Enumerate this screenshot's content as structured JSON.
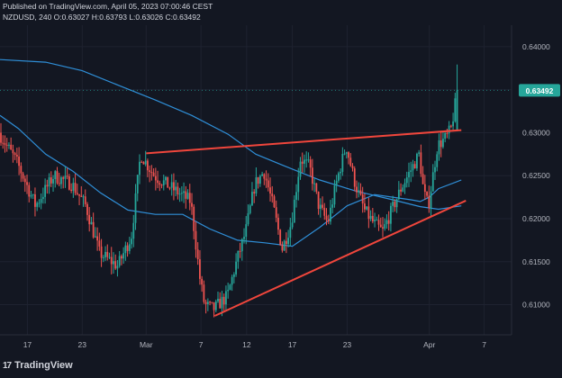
{
  "header": {
    "published": "Published on TradingView.com, April 05, 2023 07:00:46 CEST",
    "symbol_line": "NZDUSD, 240  O:0.63027 H:0.63793 L:0.63026 C:0.63492"
  },
  "brand": {
    "logo_glyph": "17",
    "name": "TradingView"
  },
  "colors": {
    "background": "#131722",
    "up": "#26a69a",
    "down": "#ef5350",
    "ma_line": "#2f8fd8",
    "trendline": "#f0463c",
    "price_tag": "#26a69a",
    "axis_text": "#b2b5be"
  },
  "chart_data": {
    "type": "candlestick",
    "symbol": "NZDUSD",
    "timeframe": "240",
    "ohlc_last": {
      "open": 0.63027,
      "high": 0.63793,
      "low": 0.63026,
      "close": 0.63492
    },
    "last_price_label": "0.63492",
    "y_ticks": [
      0.61,
      0.615,
      0.62,
      0.625,
      0.63,
      0.635,
      0.64
    ],
    "y_tick_labels": [
      "0.61000",
      "0.61500",
      "0.62000",
      "0.62500",
      "0.63000",
      "0.63500",
      "0.64000"
    ],
    "ylim": [
      0.6065,
      0.6425
    ],
    "x_ticks": [
      {
        "label": "17",
        "day": -12
      },
      {
        "label": "23",
        "day": -6
      },
      {
        "label": "Mar",
        "day": 1
      },
      {
        "label": "7",
        "day": 7
      },
      {
        "label": "12",
        "day": 12
      },
      {
        "label": "17",
        "day": 17
      },
      {
        "label": "23",
        "day": 23
      },
      {
        "label": "Apr",
        "day": 32
      },
      {
        "label": "7",
        "day": 38
      }
    ],
    "xlim": [
      -15,
      41
    ],
    "price_path": [
      [
        -15,
        0.63
      ],
      [
        -13,
        0.6265
      ],
      [
        -11,
        0.6215
      ],
      [
        -9,
        0.625
      ],
      [
        -7,
        0.624
      ],
      [
        -5.5,
        0.6215
      ],
      [
        -4,
        0.616
      ],
      [
        -2,
        0.6145
      ],
      [
        -0.5,
        0.618
      ],
      [
        0.5,
        0.6275
      ],
      [
        2,
        0.625
      ],
      [
        4,
        0.6235
      ],
      [
        6,
        0.622
      ],
      [
        7,
        0.613
      ],
      [
        7.5,
        0.61
      ],
      [
        8.5,
        0.6095
      ],
      [
        10,
        0.611
      ],
      [
        11,
        0.615
      ],
      [
        12,
        0.6185
      ],
      [
        13,
        0.624
      ],
      [
        14,
        0.6255
      ],
      [
        15,
        0.6215
      ],
      [
        16,
        0.6165
      ],
      [
        17,
        0.6195
      ],
      [
        18,
        0.627
      ],
      [
        19,
        0.626
      ],
      [
        20,
        0.6215
      ],
      [
        21,
        0.6195
      ],
      [
        22,
        0.6245
      ],
      [
        23,
        0.6285
      ],
      [
        24,
        0.624
      ],
      [
        25,
        0.621
      ],
      [
        26,
        0.6195
      ],
      [
        27,
        0.6185
      ],
      [
        28,
        0.621
      ],
      [
        29,
        0.6235
      ],
      [
        30,
        0.6255
      ],
      [
        31,
        0.6275
      ],
      [
        31.5,
        0.623
      ],
      [
        32,
        0.6215
      ],
      [
        33,
        0.6285
      ],
      [
        34,
        0.6295
      ],
      [
        34.5,
        0.6305
      ],
      [
        35.2,
        0.6349
      ]
    ],
    "ma_slow": [
      [
        -15,
        0.6385
      ],
      [
        -10,
        0.6382
      ],
      [
        -6,
        0.6372
      ],
      [
        -2,
        0.6355
      ],
      [
        2,
        0.6338
      ],
      [
        6,
        0.632
      ],
      [
        10,
        0.6298
      ],
      [
        13,
        0.6275
      ],
      [
        16,
        0.6262
      ],
      [
        20,
        0.6245
      ],
      [
        24,
        0.6232
      ],
      [
        28,
        0.6222
      ],
      [
        31,
        0.6214
      ],
      [
        33,
        0.6211
      ],
      [
        35.5,
        0.6215
      ]
    ],
    "ma_fast": [
      [
        -15,
        0.632
      ],
      [
        -13,
        0.6305
      ],
      [
        -10,
        0.6275
      ],
      [
        -7,
        0.6255
      ],
      [
        -4,
        0.623
      ],
      [
        -1,
        0.621
      ],
      [
        2,
        0.6205
      ],
      [
        5,
        0.6205
      ],
      [
        8,
        0.6188
      ],
      [
        11,
        0.6175
      ],
      [
        14,
        0.6172
      ],
      [
        17,
        0.6168
      ],
      [
        20,
        0.619
      ],
      [
        23,
        0.6215
      ],
      [
        26,
        0.6228
      ],
      [
        28,
        0.6225
      ],
      [
        30,
        0.6222
      ],
      [
        31,
        0.622
      ],
      [
        32,
        0.6225
      ],
      [
        33,
        0.6235
      ],
      [
        35.5,
        0.6245
      ]
    ],
    "trendlines": [
      {
        "from": [
          1,
          0.6276
        ],
        "to": [
          35.5,
          0.6303
        ]
      },
      {
        "from": [
          8.5,
          0.6087
        ],
        "to": [
          36,
          0.6221
        ]
      }
    ]
  }
}
